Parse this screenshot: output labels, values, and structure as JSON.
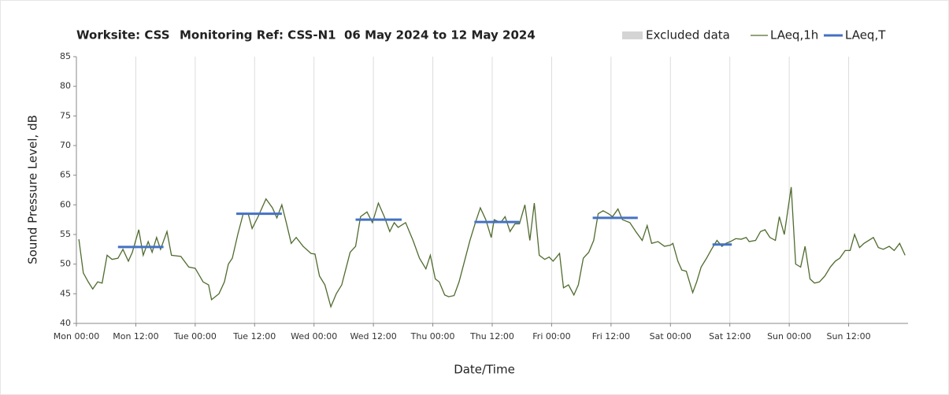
{
  "chart_data": {
    "type": "line",
    "title": [
      "Worksite: CSS",
      "Monitoring Ref: CSS-N1",
      "06 May 2024 to 12 May 2024"
    ],
    "xlabel": "Date/Time",
    "ylabel": "Sound Pressure Level, dB",
    "xlim": [
      0,
      168
    ],
    "ylim": [
      40,
      85
    ],
    "yticks": [
      40,
      45,
      50,
      55,
      60,
      65,
      70,
      75,
      80,
      85
    ],
    "xticks": [
      {
        "value": 0,
        "label": "Mon 00:00"
      },
      {
        "value": 12,
        "label": "Mon 12:00"
      },
      {
        "value": 24,
        "label": "Tue 00:00"
      },
      {
        "value": 36,
        "label": "Tue 12:00"
      },
      {
        "value": 48,
        "label": "Wed 00:00"
      },
      {
        "value": 60,
        "label": "Wed 12:00"
      },
      {
        "value": 72,
        "label": "Thu 00:00"
      },
      {
        "value": 84,
        "label": "Thu 12:00"
      },
      {
        "value": 96,
        "label": "Fri 00:00"
      },
      {
        "value": 108,
        "label": "Fri 12:00"
      },
      {
        "value": 120,
        "label": "Sat 00:00"
      },
      {
        "value": 132,
        "label": "Sat 12:00"
      },
      {
        "value": 144,
        "label": "Sun 00:00"
      },
      {
        "value": 156,
        "label": "Sun 12:00"
      }
    ],
    "grid": "x",
    "legend": "top-right",
    "excluded": {
      "name": "Excluded data",
      "color": "#d4d4d4"
    },
    "series": [
      {
        "name": "LAeq,1h",
        "color": "#4f6b2e",
        "x": [
          0.5,
          1.4,
          2.4,
          3.3,
          4.3,
          5.2,
          6.2,
          7.2,
          8.4,
          9.4,
          10.5,
          11.3,
          12.6,
          13.5,
          14.5,
          15.3,
          16.2,
          17,
          18.3,
          19.2,
          21.1,
          22.7,
          24,
          25.6,
          26.7,
          27.3,
          28.8,
          29.9,
          30.7,
          31.5,
          32.6,
          33.7,
          34.7,
          35.5,
          36.7,
          38.3,
          39.6,
          40.5,
          41.5,
          42.4,
          43.4,
          44.4,
          45.8,
          47.4,
          48.2,
          49.1,
          50.2,
          51.4,
          52.5,
          53.6,
          55.3,
          56.4,
          57.4,
          58.7,
          59.8,
          61,
          62.2,
          63.3,
          64.2,
          65,
          66.5,
          68,
          69.3,
          70.6,
          71.5,
          72.5,
          73.3,
          74.4,
          75.2,
          76.3,
          77.3,
          78.4,
          79.5,
          80.6,
          81.6,
          82.7,
          83.8,
          84.4,
          85.7,
          86.6,
          87.6,
          88.6,
          89.5,
          90.6,
          91.6,
          92.5,
          93.5,
          94.6,
          95.5,
          96.3,
          97.6,
          98.4,
          99.4,
          100.5,
          101.4,
          102.4,
          103.5,
          104.5,
          105.4,
          106.4,
          107.5,
          108.3,
          109.4,
          110.3,
          111.8,
          113,
          114.3,
          115.3,
          116.2,
          117.5,
          118.8,
          120,
          120.5,
          121.5,
          122.3,
          123.2,
          124.5,
          125.3,
          126.2,
          127.3,
          128.3,
          129.4,
          130.4,
          131.2,
          132.1,
          133.2,
          134.3,
          135.3,
          135.9,
          137.2,
          138.2,
          139.1,
          140.1,
          141.2,
          142,
          143,
          144.4,
          145.3,
          146.3,
          147.2,
          148.2,
          149.1,
          150.1,
          151.2,
          152.3,
          153.3,
          154.2,
          155.3,
          156.3,
          157.2,
          158.2,
          159.1,
          161,
          162,
          163,
          164.2,
          165.2,
          166.3,
          167.4
        ],
        "values": [
          54.2,
          48.5,
          47,
          45.8,
          47,
          46.8,
          51.5,
          50.8,
          51,
          52.5,
          50.5,
          52,
          55.8,
          51.5,
          53.8,
          52,
          54.5,
          52.5,
          55.5,
          51.5,
          51.3,
          49.5,
          49.3,
          47,
          46.5,
          44,
          45,
          47,
          50,
          51,
          55,
          58.5,
          58.5,
          56,
          58,
          61,
          59.5,
          57.8,
          60,
          57,
          53.5,
          54.5,
          53,
          51.8,
          51.7,
          48,
          46.5,
          42.8,
          45,
          46.5,
          52,
          53,
          58,
          58.8,
          57,
          60.3,
          58,
          55.5,
          57,
          56.2,
          57,
          54,
          51,
          49.2,
          51.5,
          47.5,
          47,
          44.8,
          44.5,
          44.7,
          47,
          50.5,
          54,
          57,
          59.5,
          57.5,
          54.5,
          57.5,
          57,
          58,
          55.5,
          56.8,
          56.8,
          60,
          54,
          60.3,
          51.5,
          50.8,
          51.2,
          50.5,
          51.8,
          46,
          46.5,
          44.8,
          46.5,
          51,
          52,
          54,
          58.5,
          59,
          58.5,
          58,
          59.3,
          57.5,
          57,
          55.5,
          54,
          56.5,
          53.5,
          53.8,
          53,
          53.2,
          53.5,
          50.5,
          49,
          48.8,
          45.2,
          47,
          49.5,
          51,
          52.5,
          54,
          53,
          53.5,
          53.8,
          54.3,
          54.2,
          54.5,
          53.8,
          54,
          55.5,
          55.8,
          54.5,
          54,
          58,
          55,
          63,
          50,
          49.5,
          53,
          47.5,
          46.8,
          47,
          48,
          49.5,
          50.5,
          51,
          52.3,
          52.3,
          55,
          52.8,
          53.5,
          54.5,
          52.8,
          52.5,
          53,
          52.3,
          53.5,
          51.5
        ]
      },
      {
        "name": "LAeq,T",
        "color": "#4472c4",
        "x_start": [
          8.4,
          32.3,
          56.4,
          80.4,
          104.3,
          128.5
        ],
        "x_end": [
          17.6,
          41.5,
          65.7,
          89.5,
          113.4,
          132.4
        ],
        "values": [
          52.9,
          58.5,
          57.5,
          57.1,
          57.8,
          53.3
        ]
      }
    ]
  }
}
